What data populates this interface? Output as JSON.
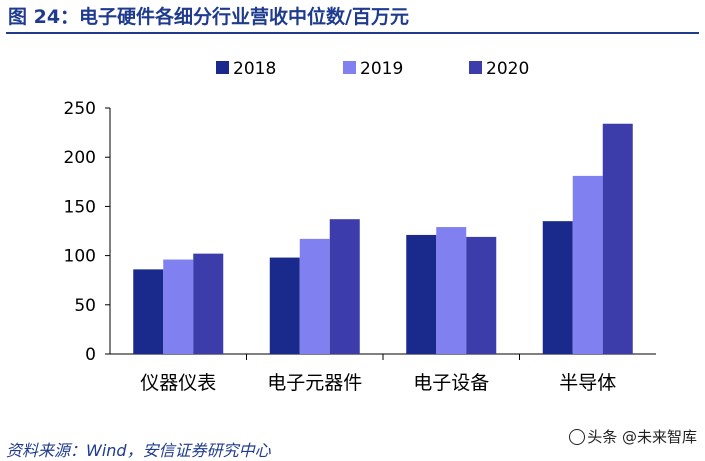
{
  "header": {
    "title": "图 24：电子硬件各细分行业营收中位数/百万元"
  },
  "chart_data": {
    "type": "bar",
    "categories": [
      "仪器仪表",
      "电子元器件",
      "电子设备",
      "半导体"
    ],
    "series": [
      {
        "name": "2018",
        "color": "#1a2a8c",
        "values": [
          86,
          98,
          121,
          135
        ]
      },
      {
        "name": "2019",
        "color": "#8080f0",
        "values": [
          96,
          117,
          129,
          181
        ]
      },
      {
        "name": "2020",
        "color": "#3c3caa",
        "values": [
          102,
          137,
          119,
          234
        ]
      }
    ],
    "ylim": [
      0,
      250
    ],
    "yticks": [
      "0",
      "50",
      "100",
      "150",
      "200",
      "250"
    ],
    "legend_position": "top",
    "grid": false
  },
  "footer": {
    "source": "资料来源：Wind，安信证券研究中心",
    "watermark": "头条 @未来智库"
  }
}
